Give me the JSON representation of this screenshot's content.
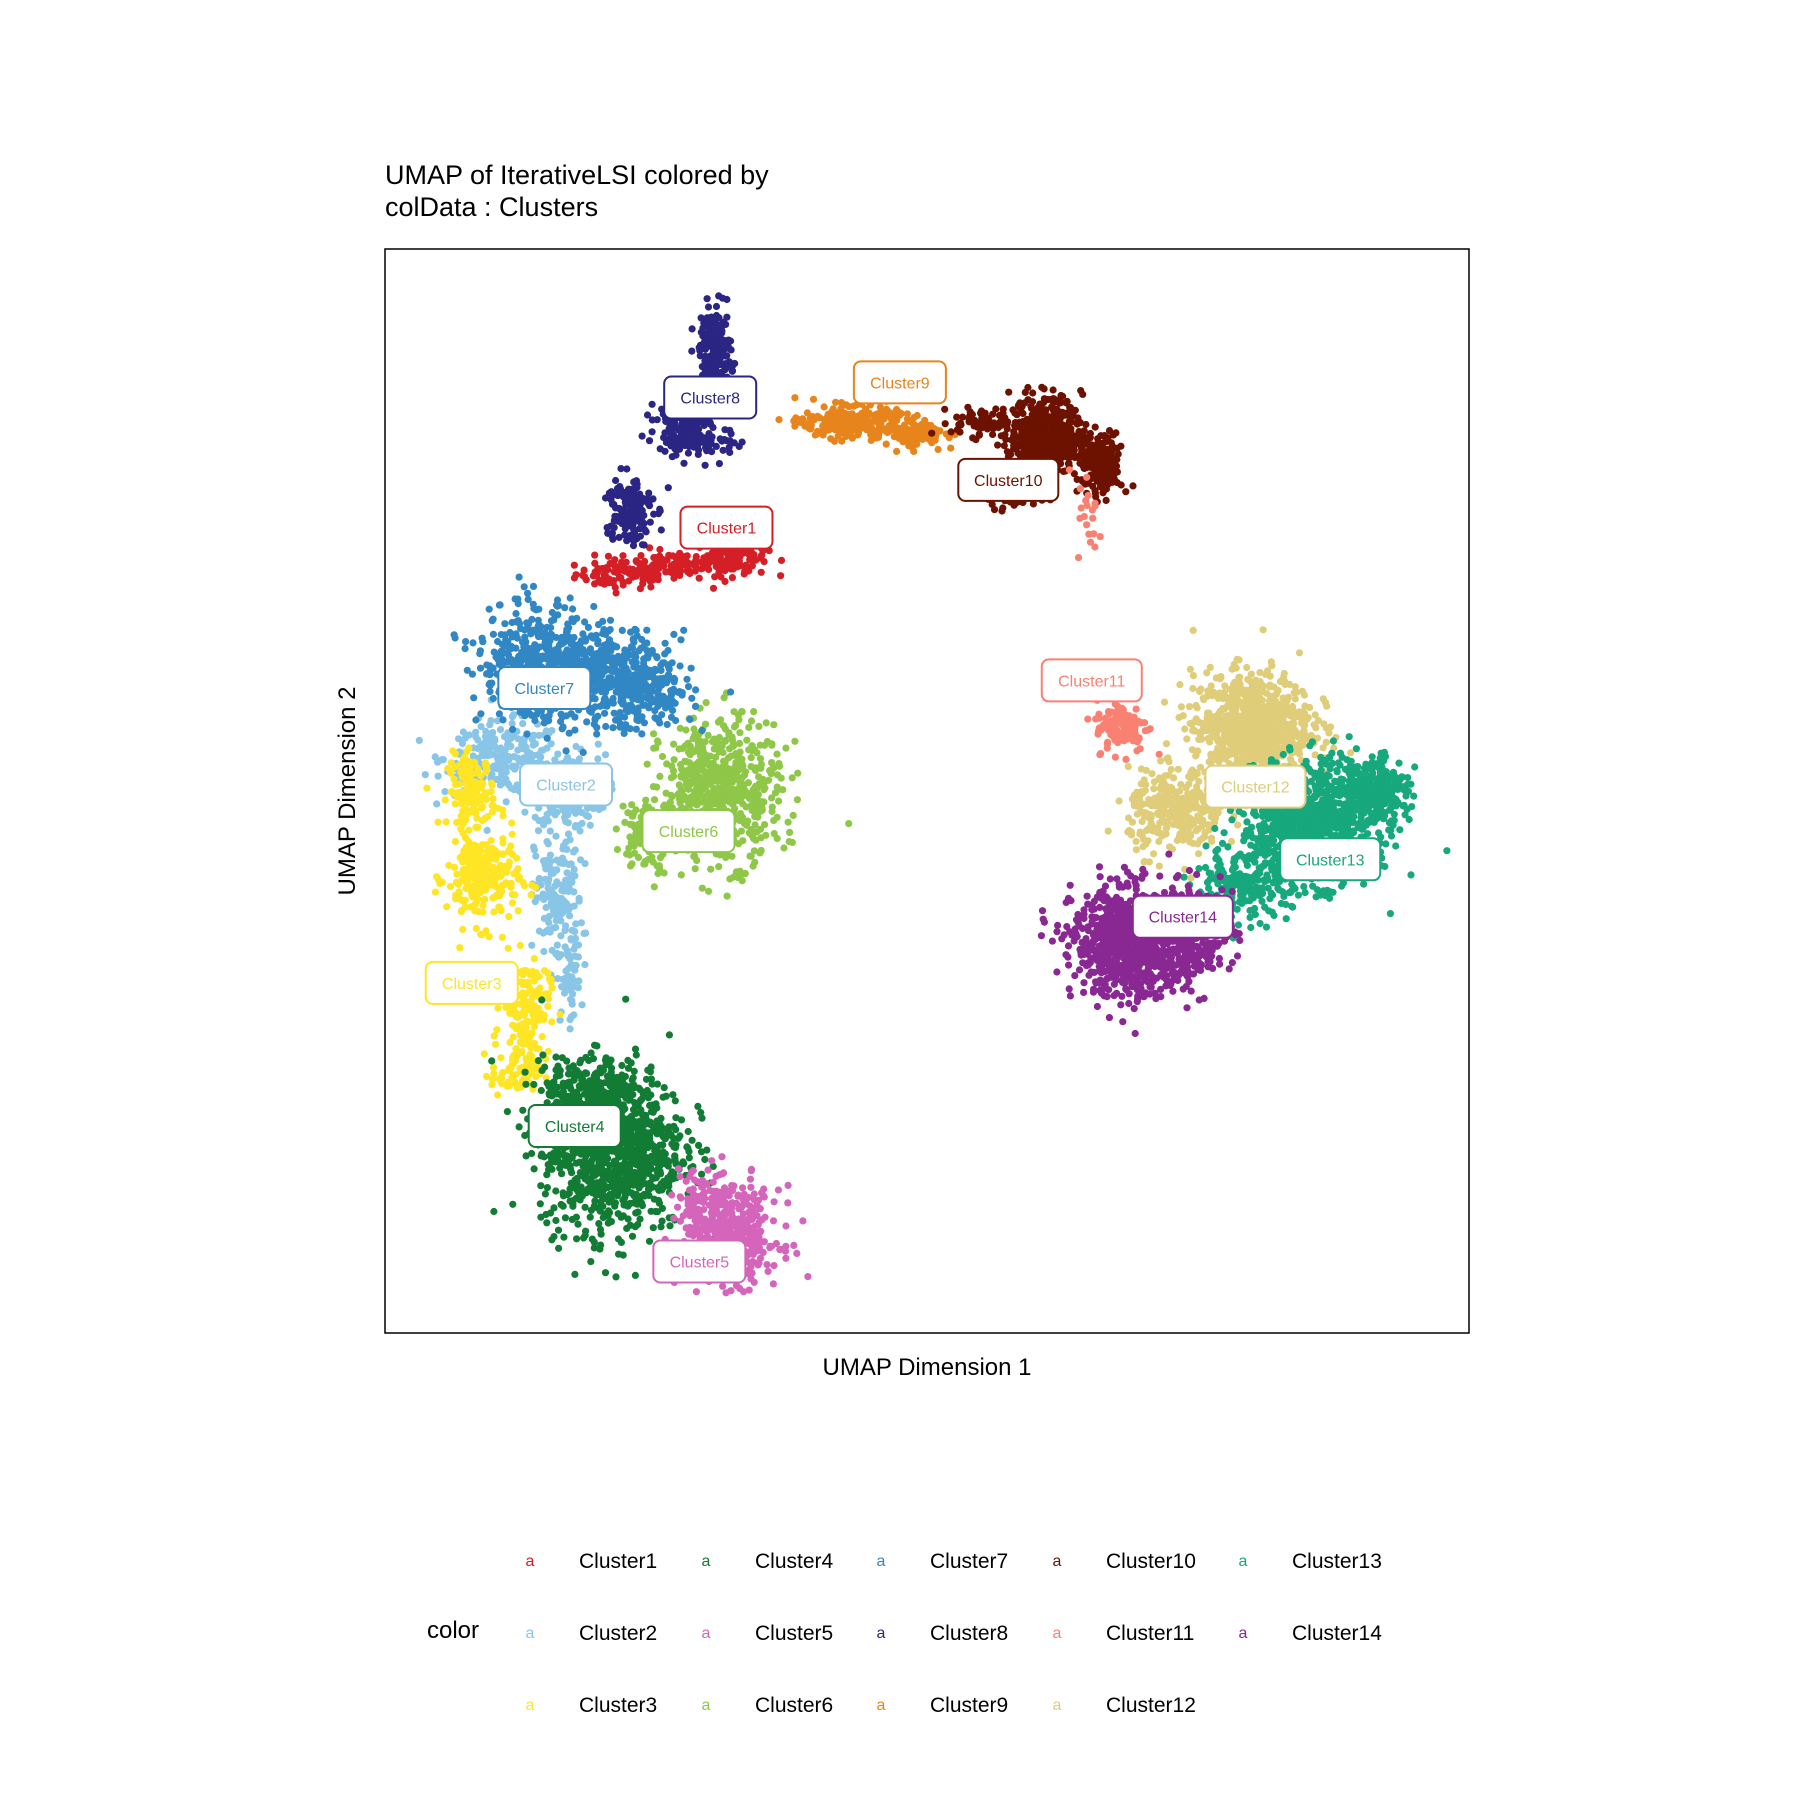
{
  "title": {
    "line1": "UMAP of IterativeLSI  colored by",
    "line2": "colData :  Clusters"
  },
  "chart_data": {
    "type": "scatter",
    "xlabel": "UMAP Dimension 1",
    "ylabel": "UMAP Dimension 2",
    "xlim": [
      0,
      100
    ],
    "ylim": [
      0,
      100
    ],
    "grid": false,
    "legend_placement": "bottom",
    "legend_title": "color",
    "legend_key_glyph": "a",
    "point_size": 3.6,
    "clusters": [
      {
        "name": "Cluster1",
        "color": "#D51F26",
        "label_pos": [
          31.5,
          74.3
        ],
        "blobs": [
          [
            22,
            70,
            4,
            1.2,
            90
          ],
          [
            27,
            71,
            4,
            1.2,
            100
          ],
          [
            32,
            71.5,
            3,
            1.5,
            110
          ]
        ]
      },
      {
        "name": "Cluster2",
        "color": "#89C5E6",
        "label_pos": [
          16.7,
          50.6
        ],
        "blobs": [
          [
            11,
            53,
            5,
            3,
            240
          ],
          [
            17,
            50,
            3,
            3,
            240
          ],
          [
            16,
            40,
            2,
            6,
            170
          ],
          [
            17,
            32,
            1,
            3,
            40
          ]
        ]
      },
      {
        "name": "Cluster3",
        "color": "#FEE525",
        "label_pos": [
          8,
          32.3
        ],
        "blobs": [
          [
            8,
            50,
            2,
            3,
            140
          ],
          [
            9,
            42,
            3,
            4,
            240
          ],
          [
            13,
            30,
            2,
            4,
            150
          ],
          [
            12,
            24,
            2,
            2,
            70
          ]
        ]
      },
      {
        "name": "Cluster4",
        "color": "#127C34",
        "label_pos": [
          17.5,
          19.1
        ],
        "blobs": [
          [
            21,
            17,
            6,
            7,
            1000
          ],
          [
            19,
            22,
            4,
            3,
            200
          ]
        ]
      },
      {
        "name": "Cluster5",
        "color": "#D465BB",
        "label_pos": [
          29,
          6.6
        ],
        "blobs": [
          [
            32,
            9,
            4,
            4,
            420
          ],
          [
            29,
            12,
            2,
            3,
            80
          ]
        ]
      },
      {
        "name": "Cluster6",
        "color": "#8FC748",
        "label_pos": [
          28,
          46.3
        ],
        "blobs": [
          [
            31,
            50,
            5,
            6,
            600
          ],
          [
            24,
            46,
            2,
            3,
            100
          ]
        ]
      },
      {
        "name": "Cluster7",
        "color": "#3187C3",
        "label_pos": [
          14.7,
          59.5
        ],
        "blobs": [
          [
            18,
            61,
            7,
            4,
            600
          ],
          [
            13,
            62,
            4,
            5,
            220
          ],
          [
            24,
            59,
            4,
            3,
            200
          ]
        ]
      },
      {
        "name": "Cluster8",
        "color": "#2B2584",
        "label_pos": [
          30,
          86.3
        ],
        "blobs": [
          [
            30.5,
            90,
            1.3,
            4,
            220
          ],
          [
            27.5,
            84,
            2.2,
            2.4,
            180
          ],
          [
            22.5,
            76,
            2,
            3,
            160
          ],
          [
            30,
            82,
            2.5,
            1.3,
            60
          ]
        ]
      },
      {
        "name": "Cluster9",
        "color": "#E7851C",
        "label_pos": [
          47.5,
          87.7
        ],
        "blobs": [
          [
            43,
            84,
            4,
            1.3,
            280
          ],
          [
            49,
            83,
            2.5,
            1.1,
            100
          ]
        ]
      },
      {
        "name": "Cluster10",
        "color": "#6D1200",
        "label_pos": [
          57.5,
          78.7
        ],
        "blobs": [
          [
            61,
            83,
            3,
            3,
            450
          ],
          [
            66,
            80,
            1.8,
            2.5,
            200
          ],
          [
            58,
            78,
            2.2,
            2,
            180
          ],
          [
            55,
            84,
            2.5,
            1.2,
            60
          ]
        ]
      },
      {
        "name": "Cluster11",
        "color": "#FA8072",
        "label_pos": [
          65.2,
          60.2
        ],
        "blobs": [
          [
            68,
            56,
            2.2,
            2.2,
            120
          ],
          [
            65,
            75,
            1,
            4,
            20
          ]
        ]
      },
      {
        "name": "Cluster12",
        "color": "#DFCD7A",
        "label_pos": [
          80.3,
          50.4
        ],
        "blobs": [
          [
            80,
            56,
            5,
            4.5,
            800
          ],
          [
            73,
            48,
            4,
            3.5,
            300
          ]
        ]
      },
      {
        "name": "Cluster13",
        "color": "#17A87D",
        "label_pos": [
          87.2,
          43.7
        ],
        "blobs": [
          [
            85,
            47,
            5.5,
            5,
            900
          ],
          [
            91,
            50,
            3,
            3,
            300
          ],
          [
            79,
            41,
            4,
            2.5,
            200
          ]
        ]
      },
      {
        "name": "Cluster14",
        "color": "#8A2893",
        "label_pos": [
          73.6,
          38.4
        ],
        "blobs": [
          [
            69,
            36,
            5,
            4.5,
            900
          ],
          [
            75,
            37,
            3,
            4,
            200
          ]
        ]
      }
    ]
  }
}
